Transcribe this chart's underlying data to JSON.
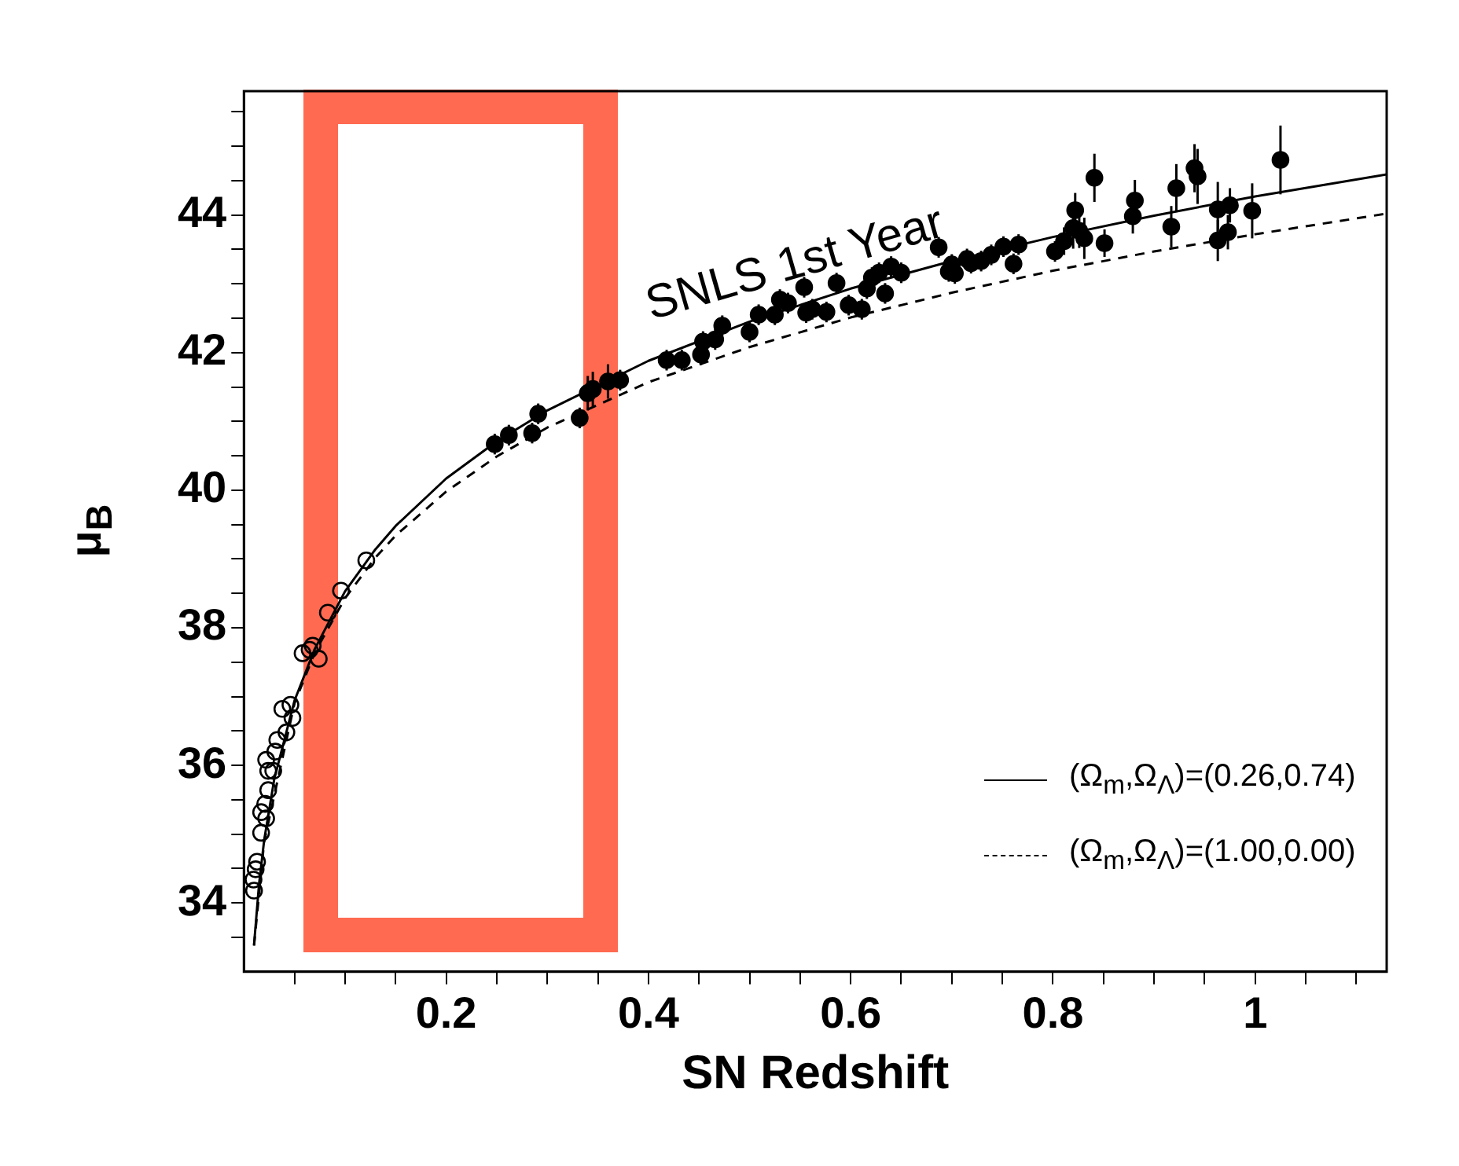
{
  "chart_data": {
    "type": "scatter",
    "xlabel": "SN Redshift",
    "ylabel": "μ$_{B}$",
    "xlim": [
      0,
      1.13
    ],
    "ylim": [
      33,
      45.8
    ],
    "xticks": [
      {
        "value": 0.05,
        "label": null
      },
      {
        "value": 0.1,
        "label": null
      },
      {
        "value": 0.15,
        "label": null
      },
      {
        "value": 0.2,
        "label": "0.2"
      },
      {
        "value": 0.25,
        "label": null
      },
      {
        "value": 0.3,
        "label": null
      },
      {
        "value": 0.35,
        "label": null
      },
      {
        "value": 0.4,
        "label": "0.4"
      },
      {
        "value": 0.45,
        "label": null
      },
      {
        "value": 0.5,
        "label": null
      },
      {
        "value": 0.55,
        "label": null
      },
      {
        "value": 0.6,
        "label": "0.6"
      },
      {
        "value": 0.65,
        "label": null
      },
      {
        "value": 0.7,
        "label": null
      },
      {
        "value": 0.75,
        "label": null
      },
      {
        "value": 0.8,
        "label": "0.8"
      },
      {
        "value": 0.85,
        "label": null
      },
      {
        "value": 0.9,
        "label": null
      },
      {
        "value": 0.95,
        "label": null
      },
      {
        "value": 1,
        "label": "1"
      },
      {
        "value": 1.05,
        "label": null
      },
      {
        "value": 1.1,
        "label": null
      }
    ],
    "yticks": [
      {
        "value": 33.5,
        "label": null
      },
      {
        "value": 34,
        "label": "34"
      },
      {
        "value": 34.5,
        "label": null
      },
      {
        "value": 35,
        "label": null
      },
      {
        "value": 35.5,
        "label": null
      },
      {
        "value": 36,
        "label": "36"
      },
      {
        "value": 36.5,
        "label": null
      },
      {
        "value": 37,
        "label": null
      },
      {
        "value": 37.5,
        "label": null
      },
      {
        "value": 38,
        "label": "38"
      },
      {
        "value": 38.5,
        "label": null
      },
      {
        "value": 39,
        "label": null
      },
      {
        "value": 39.5,
        "label": null
      },
      {
        "value": 40,
        "label": "40"
      },
      {
        "value": 40.5,
        "label": null
      },
      {
        "value": 41,
        "label": null
      },
      {
        "value": 41.5,
        "label": null
      },
      {
        "value": 42,
        "label": "42"
      },
      {
        "value": 42.5,
        "label": null
      },
      {
        "value": 43,
        "label": null
      },
      {
        "value": 43.5,
        "label": null
      },
      {
        "value": 44,
        "label": "44"
      },
      {
        "value": 44.5,
        "label": null
      },
      {
        "value": 45,
        "label": null
      },
      {
        "value": 45.5,
        "label": null
      }
    ],
    "grid": false,
    "legend": "bottom right",
    "annotations": [
      "SNLS 1st Year"
    ],
    "series": [
      {
        "name": "(Ω$_{m}$,Ω$_{Λ}$)=(0.26,0.74)",
        "type": "line",
        "line_style": "solid",
        "color": "#000000",
        "x": [
          0.01,
          0.015,
          0.02,
          0.03,
          0.05,
          0.07,
          0.1,
          0.13,
          0.15,
          0.2,
          0.25,
          0.3,
          0.4,
          0.5,
          0.6,
          0.7,
          0.8,
          0.9,
          1.0,
          1.13
        ],
        "values": [
          33.39,
          34.28,
          34.91,
          35.8,
          36.94,
          37.69,
          38.53,
          39.14,
          39.48,
          40.17,
          40.71,
          41.16,
          41.88,
          42.45,
          42.93,
          43.33,
          43.68,
          43.99,
          44.27,
          44.59
        ]
      },
      {
        "name": "(Ω$_{m}$,Ω$_{Λ}$)=(1.00,0.00)",
        "type": "line",
        "line_style": "dashed",
        "color": "#000000",
        "x": [
          0.01,
          0.02,
          0.05,
          0.07,
          0.1,
          0.13,
          0.15,
          0.2,
          0.25,
          0.3,
          0.4,
          0.5,
          0.6,
          0.7,
          0.8,
          0.9,
          1.0,
          1.13
        ],
        "values": [
          33.38,
          34.89,
          36.9,
          37.64,
          38.43,
          39.02,
          39.34,
          39.98,
          40.49,
          40.91,
          41.57,
          42.08,
          42.51,
          42.87,
          43.19,
          43.47,
          43.72,
          44.02
        ]
      },
      {
        "type": "scatter",
        "marker": "circle",
        "color": "#000000",
        "x": [
          0.01,
          0.0095,
          0.0116,
          0.013,
          0.017,
          0.022,
          0.017,
          0.021,
          0.024,
          0.029,
          0.024,
          0.022,
          0.031,
          0.033,
          0.038,
          0.042,
          0.048,
          0.046,
          0.058,
          0.065,
          0.068,
          0.074,
          0.083,
          0.096,
          0.121
        ],
        "values": [
          34.18,
          34.34,
          34.49,
          34.6,
          35.02,
          35.23,
          35.32,
          35.44,
          35.64,
          35.92,
          35.92,
          36.08,
          36.2,
          36.37,
          36.82,
          36.48,
          36.69,
          36.88,
          37.63,
          37.68,
          37.74,
          37.55,
          38.22,
          38.54,
          38.98
        ]
      },
      {
        "type": "scatter",
        "marker": "circle",
        "color": "#000000",
        "x": [
          0.248,
          0.262,
          0.285,
          0.291,
          0.332,
          0.34,
          0.345,
          0.36,
          0.372,
          0.418,
          0.433,
          0.452,
          0.454,
          0.466,
          0.473,
          0.5,
          0.509,
          0.525,
          0.53,
          0.538,
          0.554,
          0.556,
          0.562,
          0.576,
          0.586,
          0.598,
          0.611,
          0.616,
          0.621,
          0.628,
          0.634,
          0.64,
          0.65,
          0.687,
          0.697,
          0.703,
          0.7,
          0.715,
          0.719,
          0.729,
          0.739,
          0.751,
          0.761,
          0.766,
          0.802,
          0.811,
          0.82,
          0.822,
          0.826,
          0.831,
          0.841,
          0.851,
          0.879,
          0.881,
          0.917,
          0.922,
          0.94,
          0.943,
          0.963,
          0.963,
          0.973,
          0.975,
          0.997,
          1.025
        ],
        "values": [
          40.67,
          40.8,
          40.83,
          41.11,
          41.05,
          41.41,
          41.47,
          41.58,
          41.6,
          41.89,
          41.89,
          41.97,
          42.16,
          42.19,
          42.39,
          42.3,
          42.55,
          42.55,
          42.77,
          42.72,
          42.95,
          42.58,
          42.63,
          42.59,
          43.01,
          42.69,
          42.63,
          42.93,
          43.09,
          43.16,
          42.86,
          43.25,
          43.16,
          43.53,
          43.18,
          43.15,
          43.28,
          43.36,
          43.3,
          43.33,
          43.42,
          43.54,
          43.29,
          43.57,
          43.47,
          43.62,
          43.81,
          44.07,
          43.77,
          43.66,
          44.54,
          43.59,
          43.98,
          44.21,
          43.83,
          44.39,
          44.68,
          44.56,
          43.63,
          44.08,
          43.75,
          44.14,
          44.06,
          44.8
        ],
        "errors": [
          0.15,
          0.15,
          0.15,
          0.15,
          0.15,
          0.25,
          0.25,
          0.25,
          0.15,
          0.15,
          0.15,
          0.15,
          0.15,
          0.15,
          0.15,
          0.15,
          0.15,
          0.15,
          0.15,
          0.15,
          0.15,
          0.15,
          0.15,
          0.15,
          0.15,
          0.15,
          0.15,
          0.15,
          0.15,
          0.15,
          0.15,
          0.15,
          0.15,
          0.15,
          0.15,
          0.15,
          0.15,
          0.15,
          0.15,
          0.15,
          0.15,
          0.15,
          0.15,
          0.15,
          0.15,
          0.2,
          0.3,
          0.25,
          0.25,
          0.3,
          0.35,
          0.2,
          0.25,
          0.3,
          0.3,
          0.35,
          0.35,
          0.4,
          0.3,
          0.4,
          0.25,
          0.25,
          0.4,
          0.5
        ]
      }
    ]
  }
}
